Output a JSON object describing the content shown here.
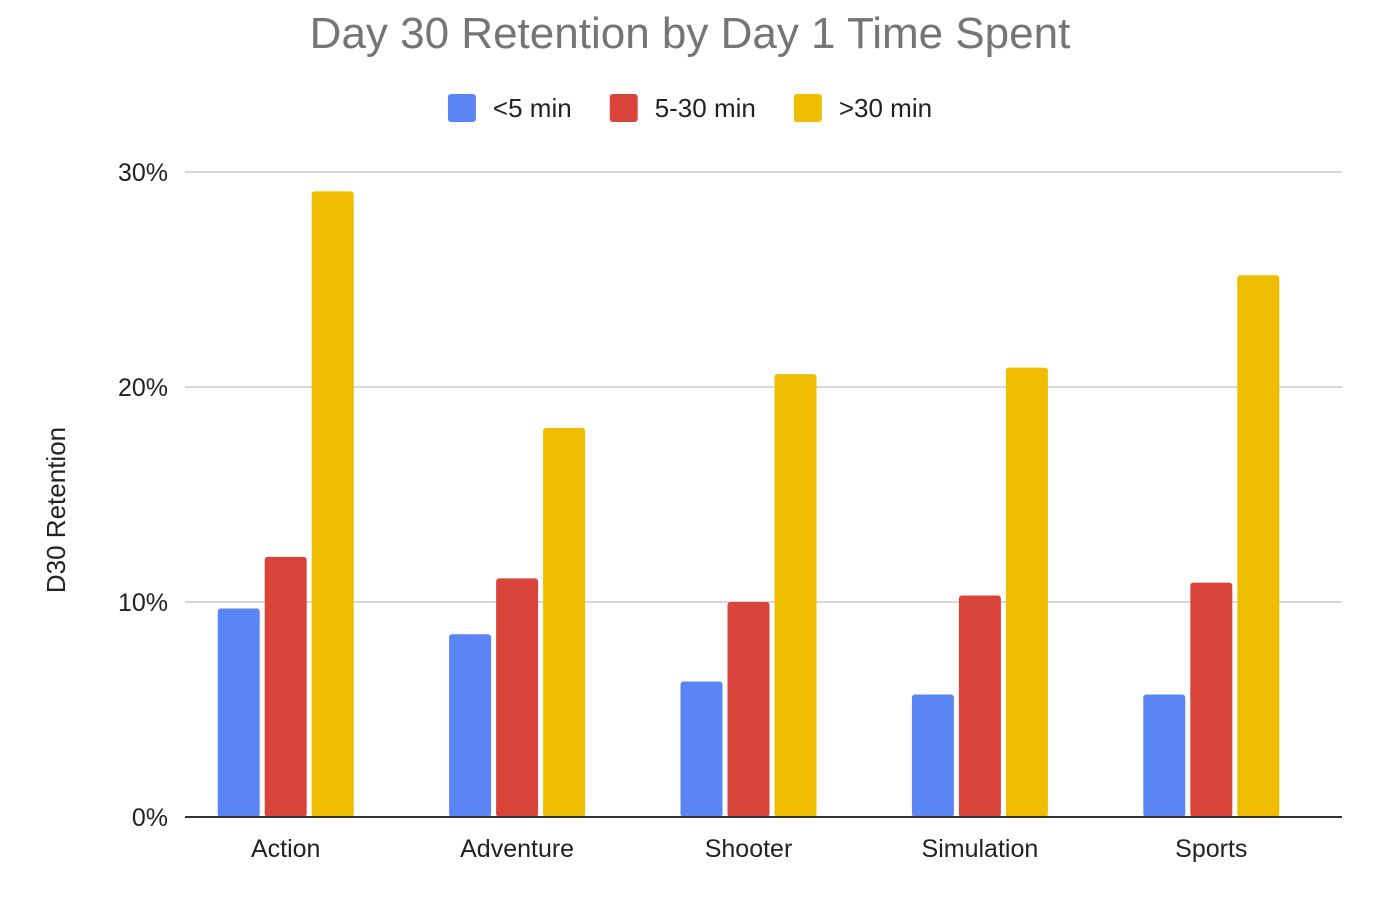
{
  "chart_data": {
    "type": "bar",
    "title": "Day 30 Retention by Day 1 Time Spent",
    "xlabel": "",
    "ylabel": "D30 Retention",
    "categories": [
      "Action",
      "Adventure",
      "Shooter",
      "Simulation",
      "Sports"
    ],
    "series": [
      {
        "name": "<5 min",
        "color": "#5b84f5",
        "values": [
          9.7,
          8.5,
          6.3,
          5.7,
          5.7
        ]
      },
      {
        "name": "5-30 min",
        "color": "#da453b",
        "values": [
          12.1,
          11.1,
          10.0,
          10.3,
          10.9
        ]
      },
      {
        "name": ">30 min",
        "color": "#efbd00",
        "values": [
          29.1,
          18.1,
          20.6,
          20.9,
          25.2
        ]
      }
    ],
    "ylim": [
      0,
      30
    ],
    "yticks": [
      0,
      10,
      20,
      30
    ],
    "ytick_labels": [
      "0%",
      "10%",
      "20%",
      "30%"
    ],
    "grid": true,
    "legend_position": "top-center"
  }
}
